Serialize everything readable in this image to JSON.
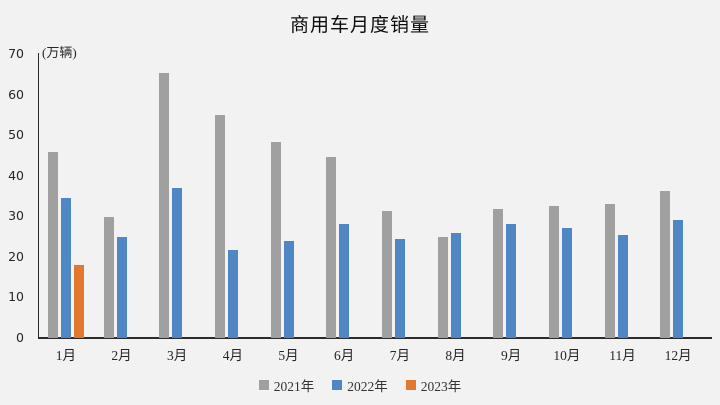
{
  "chart_data": {
    "type": "bar",
    "title": "商用车月度销量",
    "ylabel": "(万辆)",
    "categories": [
      "1月",
      "2月",
      "3月",
      "4月",
      "5月",
      "6月",
      "7月",
      "8月",
      "9月",
      "10月",
      "11月",
      "12月"
    ],
    "series": [
      {
        "name": "2021年",
        "color": "#A0A0A0",
        "values": [
          45.9,
          29.8,
          65.4,
          55.0,
          48.2,
          44.7,
          31.3,
          24.8,
          31.7,
          32.6,
          33.1,
          36.3
        ]
      },
      {
        "name": "2022年",
        "color": "#4F87C5",
        "values": [
          34.4,
          25.0,
          37.0,
          21.7,
          23.8,
          28.2,
          24.4,
          25.8,
          28.0,
          27.1,
          25.3,
          29.1
        ]
      },
      {
        "name": "2023年",
        "color": "#E2772E",
        "values": [
          18.0,
          null,
          null,
          null,
          null,
          null,
          null,
          null,
          null,
          null,
          null,
          null
        ]
      }
    ],
    "ylim": [
      0,
      70
    ],
    "yticks": [
      0,
      10,
      20,
      30,
      40,
      50,
      60,
      70
    ],
    "grid": false,
    "legend_position": "bottom"
  },
  "colors": {
    "background": "#F2F2F2",
    "axis": "#2B2B2B",
    "text": "#262626"
  }
}
